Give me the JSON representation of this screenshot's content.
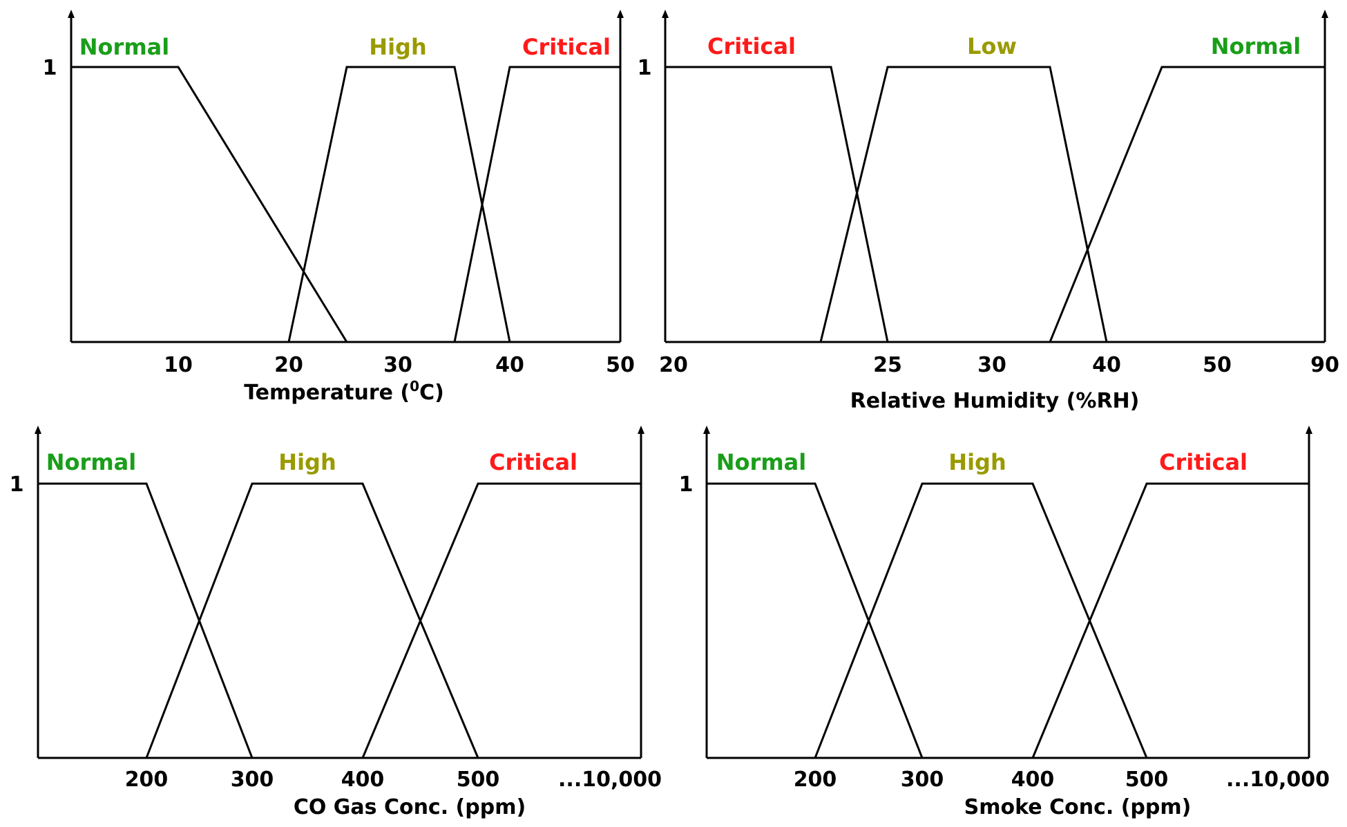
{
  "colors": {
    "Normal": "#1a9e1a",
    "High": "#9a9a00",
    "Low": "#9a9a00",
    "Critical": "#ff1a1a",
    "line": "#000000"
  },
  "chart_data": [
    {
      "type": "line",
      "title": "",
      "xlabel": "Temperature (",
      "xlabel_sup": "0",
      "xlabel_suffix": "C)",
      "ylabel": "",
      "y_tick_label": "1",
      "ylim": [
        0,
        1
      ],
      "grid": false,
      "x_ticks": [
        {
          "label": "10",
          "value": 10
        },
        {
          "label": "20",
          "value": 20
        },
        {
          "label": "30",
          "value": 30
        },
        {
          "label": "40",
          "value": 40
        },
        {
          "label": "50",
          "value": 50
        }
      ],
      "series": [
        {
          "name": "Normal",
          "x": [
            0,
            10,
            25
          ],
          "y": [
            1,
            1,
            0
          ]
        },
        {
          "name": "High",
          "x": [
            20,
            25,
            35,
            40
          ],
          "y": [
            0,
            1,
            1,
            0
          ]
        },
        {
          "name": "Critical",
          "x": [
            35,
            40,
            50
          ],
          "y": [
            0,
            1,
            1
          ]
        }
      ]
    },
    {
      "type": "line",
      "title": "",
      "xlabel": "Relative Humidity (%RH)",
      "ylabel": "",
      "y_tick_label": "1",
      "ylim": [
        0,
        1
      ],
      "grid": false,
      "x_ticks": [
        {
          "label": "20",
          "value": 20
        },
        {
          "label": "25",
          "value": 25
        },
        {
          "label": "30",
          "value": 30
        },
        {
          "label": "40",
          "value": 40
        },
        {
          "label": "50",
          "value": 50
        },
        {
          "label": "90",
          "value": 90
        }
      ],
      "series": [
        {
          "name": "Critical",
          "x": [
            20,
            23.5,
            25
          ],
          "y": [
            1,
            1,
            0
          ]
        },
        {
          "name": "Low",
          "x": [
            23,
            25,
            35,
            40
          ],
          "y": [
            0,
            1,
            1,
            0
          ]
        },
        {
          "name": "Normal",
          "x": [
            35,
            45,
            90
          ],
          "y": [
            0,
            1,
            1
          ]
        }
      ]
    },
    {
      "type": "line",
      "title": "",
      "xlabel": "CO Gas Conc. (ppm)",
      "ylabel": "",
      "y_tick_label": "1",
      "ylim": [
        0,
        1
      ],
      "grid": false,
      "x_ticks": [
        {
          "label": "200",
          "value": 200
        },
        {
          "label": "300",
          "value": 300
        },
        {
          "label": "400",
          "value": 400
        },
        {
          "label": "500",
          "value": 500
        },
        {
          "label": "...10,000",
          "value": 10000
        }
      ],
      "series": [
        {
          "name": "Normal",
          "x": [
            0,
            200,
            300
          ],
          "y": [
            1,
            1,
            0
          ]
        },
        {
          "name": "High",
          "x": [
            200,
            300,
            400,
            500
          ],
          "y": [
            0,
            1,
            1,
            0
          ]
        },
        {
          "name": "Critical",
          "x": [
            400,
            500,
            10000
          ],
          "y": [
            0,
            1,
            1
          ]
        }
      ]
    },
    {
      "type": "line",
      "title": "",
      "xlabel": "Smoke Conc. (ppm)",
      "ylabel": "",
      "y_tick_label": "1",
      "ylim": [
        0,
        1
      ],
      "grid": false,
      "x_ticks": [
        {
          "label": "200",
          "value": 200
        },
        {
          "label": "300",
          "value": 300
        },
        {
          "label": "400",
          "value": 400
        },
        {
          "label": "500",
          "value": 500
        },
        {
          "label": "...10,000",
          "value": 10000
        }
      ],
      "series": [
        {
          "name": "Normal",
          "x": [
            0,
            200,
            300
          ],
          "y": [
            1,
            1,
            0
          ]
        },
        {
          "name": "High",
          "x": [
            200,
            300,
            400,
            500
          ],
          "y": [
            0,
            1,
            1,
            0
          ]
        },
        {
          "name": "Critical",
          "x": [
            400,
            500,
            10000
          ],
          "y": [
            0,
            1,
            1
          ]
        }
      ]
    }
  ]
}
